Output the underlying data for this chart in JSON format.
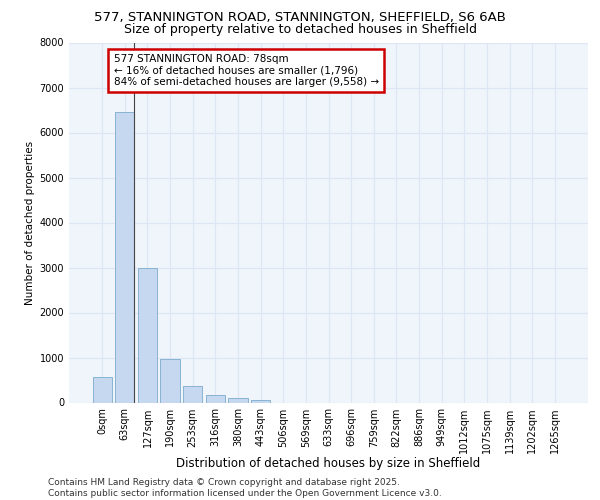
{
  "title_line1": "577, STANNINGTON ROAD, STANNINGTON, SHEFFIELD, S6 6AB",
  "title_line2": "Size of property relative to detached houses in Sheffield",
  "xlabel": "Distribution of detached houses by size in Sheffield",
  "ylabel": "Number of detached properties",
  "categories": [
    "0sqm",
    "63sqm",
    "127sqm",
    "190sqm",
    "253sqm",
    "316sqm",
    "380sqm",
    "443sqm",
    "506sqm",
    "569sqm",
    "633sqm",
    "696sqm",
    "759sqm",
    "822sqm",
    "886sqm",
    "949sqm",
    "1012sqm",
    "1075sqm",
    "1139sqm",
    "1202sqm",
    "1265sqm"
  ],
  "values": [
    560,
    6450,
    2980,
    960,
    360,
    170,
    110,
    65,
    0,
    0,
    0,
    0,
    0,
    0,
    0,
    0,
    0,
    0,
    0,
    0,
    0
  ],
  "bar_color": "#c5d8f0",
  "bar_edge_color": "#7aabcc",
  "highlight_line_color": "#444444",
  "annotation_box_color": "#cc0000",
  "annotation_text": "577 STANNINGTON ROAD: 78sqm\n← 16% of detached houses are smaller (1,796)\n84% of semi-detached houses are larger (9,558) →",
  "annotation_fontsize": 7.5,
  "ylim": [
    0,
    8000
  ],
  "yticks": [
    0,
    1000,
    2000,
    3000,
    4000,
    5000,
    6000,
    7000,
    8000
  ],
  "grid_color": "#dce6f4",
  "background_color": "#f0f4fb",
  "footnote_line1": "Contains HM Land Registry data © Crown copyright and database right 2025.",
  "footnote_line2": "Contains public sector information licensed under the Open Government Licence v3.0.",
  "footnote_fontsize": 6.5,
  "title_fontsize1": 9.5,
  "title_fontsize2": 9,
  "xlabel_fontsize": 8.5,
  "ylabel_fontsize": 7.5,
  "tick_fontsize": 7
}
